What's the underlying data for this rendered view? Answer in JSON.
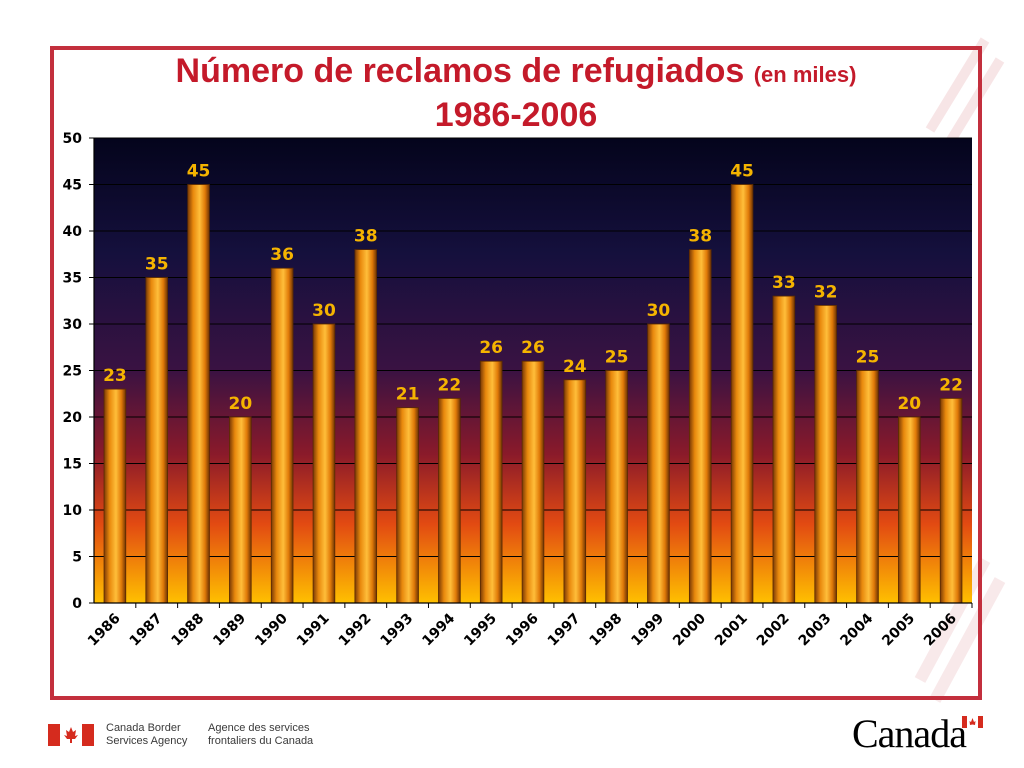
{
  "title_main": "Número de reclamos de refugiados",
  "title_unit": "(en miles)",
  "title_years": "1986-2006",
  "footer": {
    "agency_en_1": "Canada Border",
    "agency_en_2": "Services Agency",
    "agency_fr_1": "Agence des services",
    "agency_fr_2": "frontaliers du Canada",
    "wordmark": "Canada"
  },
  "colors": {
    "accent_red": "#c41a2a",
    "bar": "#e8880c",
    "label": "#f5b400"
  },
  "chart_data": {
    "type": "bar",
    "title": "Número de reclamos de refugiados (en miles) 1986-2006",
    "categories": [
      "1986",
      "1987",
      "1988",
      "1989",
      "1990",
      "1991",
      "1992",
      "1993",
      "1994",
      "1995",
      "1996",
      "1997",
      "1998",
      "1999",
      "2000",
      "2001",
      "2002",
      "2003",
      "2004",
      "2005",
      "2006"
    ],
    "values": [
      23,
      35,
      45,
      20,
      36,
      30,
      38,
      21,
      22,
      26,
      26,
      24,
      25,
      30,
      38,
      45,
      33,
      32,
      25,
      20,
      22
    ],
    "ylim": [
      0,
      50
    ],
    "yticks": [
      0,
      5,
      10,
      15,
      20,
      25,
      30,
      35,
      40,
      45,
      50
    ],
    "grid": true,
    "legend": "none",
    "data_labels": true
  }
}
